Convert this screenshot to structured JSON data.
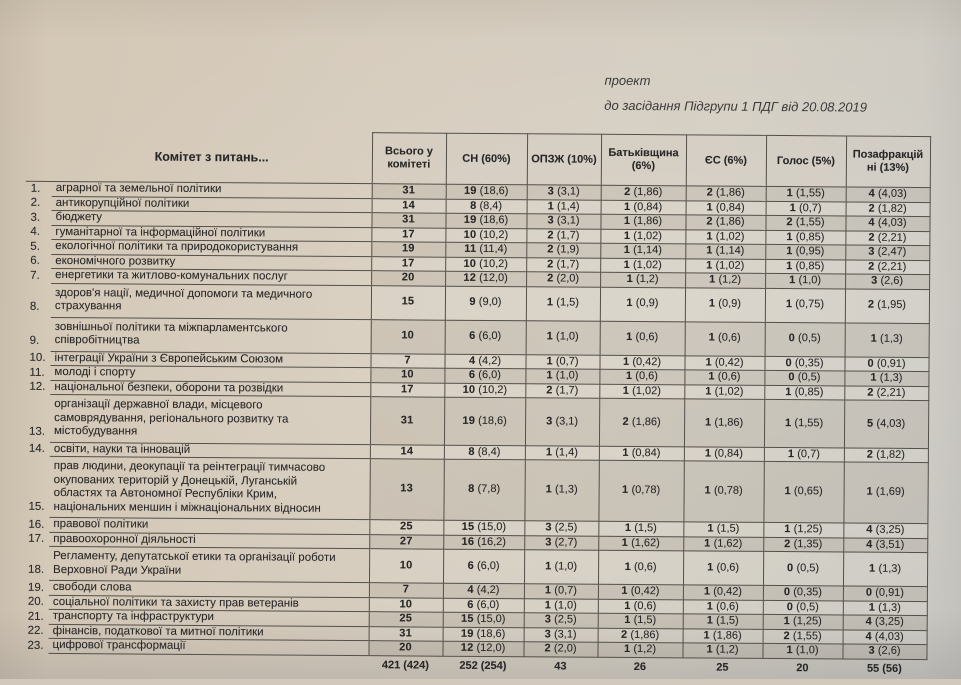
{
  "doc_note": {
    "line1": "проект",
    "line2": "до засідання Підгрупи 1 ПДГ від 20.08.2019"
  },
  "table": {
    "name_header": "Комітет з питань...",
    "columns": [
      "Всього у комітеті",
      "СН (60%)",
      "ОПЗЖ (10%)",
      "Батьківщина (6%)",
      "ЄС (6%)",
      "Голос (5%)",
      "Позафракційні (13%)"
    ],
    "rows": [
      {
        "num": "1.",
        "name": "аграрної та земельної політики",
        "cells": [
          "31",
          "19 (18,6)",
          "3 (3,1)",
          "2 (1,86)",
          "2 (1,86)",
          "1 (1,55)",
          "4 (4,03)"
        ]
      },
      {
        "num": "2.",
        "name": "антикорупційної політики",
        "cells": [
          "14",
          "8 (8,4)",
          "1 (1,4)",
          "1 (0,84)",
          "1 (0,84)",
          "1 (0,7)",
          "2 (1,82)"
        ]
      },
      {
        "num": "3.",
        "name": "бюджету",
        "cells": [
          "31",
          "19 (18,6)",
          "3 (3,1)",
          "1 (1,86)",
          "2 (1,86)",
          "2 (1,55)",
          "4 (4,03)"
        ]
      },
      {
        "num": "4.",
        "name": "гуманітарної та інформаційної політики",
        "cells": [
          "17",
          "10 (10,2)",
          "2 (1,7)",
          "1 (1,02)",
          "1 (1,02)",
          "1 (0,85)",
          "2 (2,21)"
        ]
      },
      {
        "num": "5.",
        "name": "екологічної політики та природокористування",
        "cells": [
          "19",
          "11 (11,4)",
          "2 (1,9)",
          "1 (1,14)",
          "1 (1,14)",
          "1 (0,95)",
          "3 (2,47)"
        ]
      },
      {
        "num": "6.",
        "name": "економічного розвитку",
        "cells": [
          "17",
          "10 (10,2)",
          "2 (1,7)",
          "1 (1,02)",
          "1 (1,02)",
          "1 (0,85)",
          "2 (2,21)"
        ]
      },
      {
        "num": "7.",
        "name": "енергетики та житлово-комунальних послуг",
        "cells": [
          "20",
          "12 (12,0)",
          "2 (2,0)",
          "1 (1,2)",
          "1 (1,2)",
          "1 (1,0)",
          "3 (2,6)"
        ]
      },
      {
        "num": "8.",
        "name": "здоров'я нації, медичної допомоги та медичного\nстрахування",
        "cells": [
          "15",
          "9 (9,0)",
          "1 (1,5)",
          "1 (0,9)",
          "1 (0,9)",
          "1 (0,75)",
          "2 (1,95)"
        ]
      },
      {
        "num": "9.",
        "name": "зовнішньої політики та міжпарламентського\nспівробітництва",
        "cells": [
          "10",
          "6 (6,0)",
          "1 (1,0)",
          "1 (0,6)",
          "1 (0,6)",
          "0 (0,5)",
          "1 (1,3)"
        ]
      },
      {
        "num": "10.",
        "name": "інтеграції України з Європейським Союзом",
        "cells": [
          "7",
          "4 (4,2)",
          "1 (0,7)",
          "1 (0,42)",
          "1 (0,42)",
          "0 (0,35)",
          "0 (0,91)"
        ]
      },
      {
        "num": "11.",
        "name": "молоді і спорту",
        "cells": [
          "10",
          "6 (6,0)",
          "1 (1,0)",
          "1 (0,6)",
          "1 (0,6)",
          "0 (0,5)",
          "1 (1,3)"
        ]
      },
      {
        "num": "12.",
        "name": "національної безпеки, оборони та розвідки",
        "cells": [
          "17",
          "10 (10,2)",
          "2 (1,7)",
          "1 (1,02)",
          "1 (1,02)",
          "1 (0,85)",
          "2 (2,21)"
        ]
      },
      {
        "num": "13.",
        "name": "організації державної влади, місцевого\nсамоврядування, регіонального розвитку та\nмістобудування",
        "cells": [
          "31",
          "19 (18,6)",
          "3 (3,1)",
          "2 (1,86)",
          "1 (1,86)",
          "1 (1,55)",
          "5 (4,03)"
        ]
      },
      {
        "num": "14.",
        "name": "освіти, науки та інновацій",
        "cells": [
          "14",
          "8 (8,4)",
          "1 (1,4)",
          "1 (0,84)",
          "1 (0,84)",
          "1 (0,7)",
          "2 (1,82)"
        ]
      },
      {
        "num": "15.",
        "name": "прав людини, деокупації та реінтеграції тимчасово\nокупованих територій у Донецькій, Луганській\nобластях та Автономної Республіки Крим,\nнаціональних меншин і міжнаціональних відносин",
        "cells": [
          "13",
          "8 (7,8)",
          "1 (1,3)",
          "1 (0,78)",
          "1 (0,78)",
          "1 (0,65)",
          "1 (1,69)"
        ]
      },
      {
        "num": "16.",
        "name": "правової політики",
        "cells": [
          "25",
          "15 (15,0)",
          "3 (2,5)",
          "1 (1,5)",
          "1 (1,5)",
          "1 (1,25)",
          "4 (3,25)"
        ]
      },
      {
        "num": "17.",
        "name": "правоохоронної діяльності",
        "cells": [
          "27",
          "16 (16,2)",
          "3 (2,7)",
          "1 (1,62)",
          "1 (1,62)",
          "2 (1,35)",
          "4 (3,51)"
        ]
      },
      {
        "num": "18.",
        "name": "Регламенту, депутатської етики та організації роботи\nВерховної Ради України",
        "cells": [
          "10",
          "6 (6,0)",
          "1 (1,0)",
          "1 (0,6)",
          "1 (0,6)",
          "0 (0,5)",
          "1 (1,3)"
        ]
      },
      {
        "num": "19.",
        "name": "свободи слова",
        "cells": [
          "7",
          "4 (4,2)",
          "1 (0,7)",
          "1 (0,42)",
          "1 (0,42)",
          "0 (0,35)",
          "0 (0,91)"
        ]
      },
      {
        "num": "20.",
        "name": "соціальної політики та захисту прав ветеранів",
        "cells": [
          "10",
          "6 (6,0)",
          "1 (1,0)",
          "1 (0,6)",
          "1 (0,6)",
          "0 (0,5)",
          "1 (1,3)"
        ]
      },
      {
        "num": "21.",
        "name": "транспорту та інфраструктури",
        "cells": [
          "25",
          "15 (15,0)",
          "3 (2,5)",
          "1 (1,5)",
          "1 (1,5)",
          "1 (1,25)",
          "4 (3,25)"
        ]
      },
      {
        "num": "22.",
        "name": "фінансів, податкової та митної політики",
        "cells": [
          "31",
          "19 (18,6)",
          "3 (3,1)",
          "2 (1,86)",
          "1 (1,86)",
          "2 (1,55)",
          "4 (4,03)"
        ]
      },
      {
        "num": "23.",
        "name": "цифрової трансформації",
        "cells": [
          "20",
          "12 (12,0)",
          "2 (2,0)",
          "1 (1,2)",
          "1 (1,2)",
          "1 (1,0)",
          "3 (2,6)"
        ]
      }
    ],
    "totals": [
      "421 (424)",
      "252 (254)",
      "43",
      "26",
      "25",
      "20",
      "55 (56)"
    ]
  },
  "colors": {
    "paper": "#d4c9b8",
    "ink": "#2b2b2b",
    "table_line": "#53504a"
  }
}
